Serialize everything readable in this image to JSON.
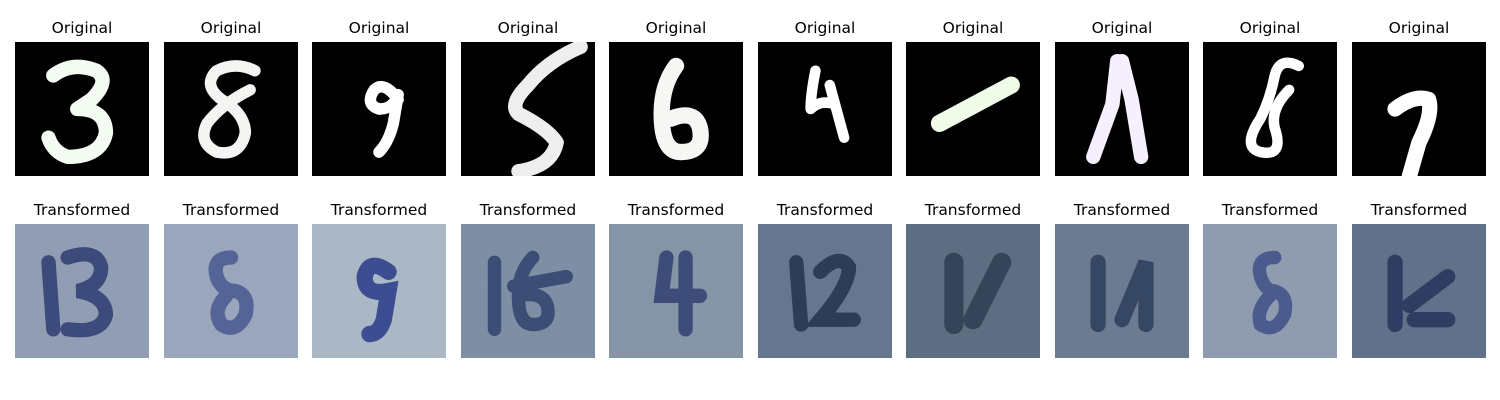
{
  "figure": {
    "row_original": {
      "panels": [
        {
          "title": "Original",
          "digit": "3",
          "tint": "#f4fbf2"
        },
        {
          "title": "Original",
          "digit": "8",
          "tint": "#f4f5f2"
        },
        {
          "title": "Original",
          "digit": "9",
          "tint": "#ffffff"
        },
        {
          "title": "Original",
          "digit": "5",
          "tint": "#eeeeee"
        },
        {
          "title": "Original",
          "digit": "6",
          "tint": "#f6f6f4"
        },
        {
          "title": "Original",
          "digit": "4",
          "tint": "#ffffff"
        },
        {
          "title": "Original",
          "digit": "1",
          "tint": "#f0fbe8"
        },
        {
          "title": "Original",
          "digit": "1",
          "tint": "#f6effe"
        },
        {
          "title": "Original",
          "digit": "8",
          "tint": "#ffffff"
        },
        {
          "title": "Original",
          "digit": "7",
          "tint": "#ffffff"
        }
      ]
    },
    "row_transformed": {
      "panels": [
        {
          "title": "Transformed",
          "digit": "3",
          "background": "#7f8ea6",
          "ink": "#2f3d72"
        },
        {
          "title": "Transformed",
          "digit": "8",
          "background": "#9aa6bb",
          "ink": "#3d4d8a"
        },
        {
          "title": "Transformed",
          "digit": "9",
          "background": "#a9b8c4",
          "ink": "#2a3a8a"
        },
        {
          "title": "Transformed",
          "digit": "6",
          "background": "#7e8ea3",
          "ink": "#2c3d6a"
        },
        {
          "title": "Transformed",
          "digit": "4",
          "background": "#8595a6",
          "ink": "#2a3a6e"
        },
        {
          "title": "Transformed",
          "digit": "2",
          "background": "#65768e",
          "ink": "#24324f"
        },
        {
          "title": "Transformed",
          "digit": "1",
          "background": "#5e6e82",
          "ink": "#233246"
        },
        {
          "title": "Transformed",
          "digit": "1",
          "background": "#6b7c92",
          "ink": "#293a58"
        },
        {
          "title": "Transformed",
          "digit": "8",
          "background": "#8f9caf",
          "ink": "#3a4b86"
        },
        {
          "title": "Transformed",
          "digit": "7",
          "background": "#617189",
          "ink": "#26345a"
        }
      ]
    }
  }
}
